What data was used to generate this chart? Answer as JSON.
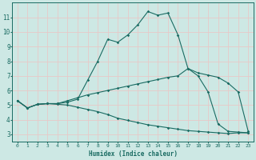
{
  "xlabel": "Humidex (Indice chaleur)",
  "ylabel": "",
  "bg_color": "#cde8e4",
  "line_color": "#1a6b62",
  "grid_color": "#e8c8c8",
  "xlim": [
    -0.5,
    23.5
  ],
  "ylim": [
    2.5,
    12.0
  ],
  "xticks": [
    0,
    1,
    2,
    3,
    4,
    5,
    6,
    7,
    8,
    9,
    10,
    11,
    12,
    13,
    14,
    15,
    16,
    17,
    18,
    19,
    20,
    21,
    22,
    23
  ],
  "yticks": [
    3,
    4,
    5,
    6,
    7,
    8,
    9,
    10,
    11
  ],
  "curve1_x": [
    0,
    1,
    2,
    3,
    4,
    5,
    6,
    7,
    8,
    9,
    10,
    11,
    12,
    13,
    14,
    15,
    16,
    17,
    18,
    19,
    20,
    21,
    22,
    23
  ],
  "curve1_y": [
    5.3,
    4.8,
    5.05,
    5.1,
    5.1,
    5.2,
    5.4,
    6.7,
    8.0,
    9.5,
    9.3,
    9.8,
    10.5,
    11.4,
    11.15,
    11.3,
    9.8,
    7.5,
    7.0,
    5.9,
    3.7,
    3.2,
    3.15,
    3.1
  ],
  "curve2_x": [
    0,
    1,
    2,
    3,
    4,
    5,
    6,
    7,
    8,
    9,
    10,
    11,
    12,
    13,
    14,
    15,
    16,
    17,
    18,
    19,
    20,
    21,
    22,
    23
  ],
  "curve2_y": [
    5.3,
    4.8,
    5.05,
    5.1,
    5.1,
    5.3,
    5.5,
    5.7,
    5.85,
    6.0,
    6.15,
    6.3,
    6.45,
    6.6,
    6.75,
    6.9,
    7.0,
    7.5,
    7.2,
    7.05,
    6.9,
    6.5,
    5.9,
    3.2
  ],
  "curve3_x": [
    0,
    1,
    2,
    3,
    4,
    5,
    6,
    7,
    8,
    9,
    10,
    11,
    12,
    13,
    14,
    15,
    16,
    17,
    18,
    19,
    20,
    21,
    22,
    23
  ],
  "curve3_y": [
    5.3,
    4.8,
    5.05,
    5.1,
    5.05,
    5.0,
    4.85,
    4.7,
    4.55,
    4.35,
    4.1,
    3.95,
    3.8,
    3.65,
    3.55,
    3.45,
    3.35,
    3.25,
    3.2,
    3.15,
    3.1,
    3.05,
    3.1,
    3.1
  ]
}
